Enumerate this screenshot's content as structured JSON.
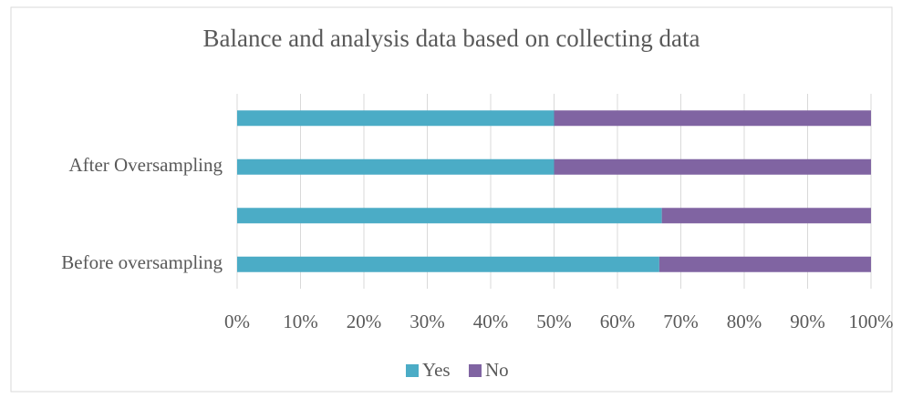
{
  "chart_data": {
    "type": "stacked_bar_horizontal",
    "title": "Balance and analysis data based on collecting data",
    "categories": [
      null,
      "After Oversampling",
      null,
      "Before oversampling"
    ],
    "series": [
      {
        "name": "Yes",
        "color": "#4bacc6",
        "values": [
          50,
          50,
          67,
          66.6
        ]
      },
      {
        "name": "No",
        "color": "#8064a2",
        "values": [
          50,
          50,
          33,
          33.4
        ]
      }
    ],
    "xlim": [
      0,
      100
    ],
    "xticks": [
      {
        "value": 0,
        "label": "0%"
      },
      {
        "value": 10,
        "label": "10%"
      },
      {
        "value": 20,
        "label": "20%"
      },
      {
        "value": 30,
        "label": "30%"
      },
      {
        "value": 40,
        "label": "40%"
      },
      {
        "value": 50,
        "label": "50%"
      },
      {
        "value": 60,
        "label": "60%"
      },
      {
        "value": 70,
        "label": "70%"
      },
      {
        "value": 80,
        "label": "80%"
      },
      {
        "value": 90,
        "label": "90%"
      },
      {
        "value": 100,
        "label": "100%"
      }
    ],
    "grid": true,
    "legend": "bottom"
  }
}
